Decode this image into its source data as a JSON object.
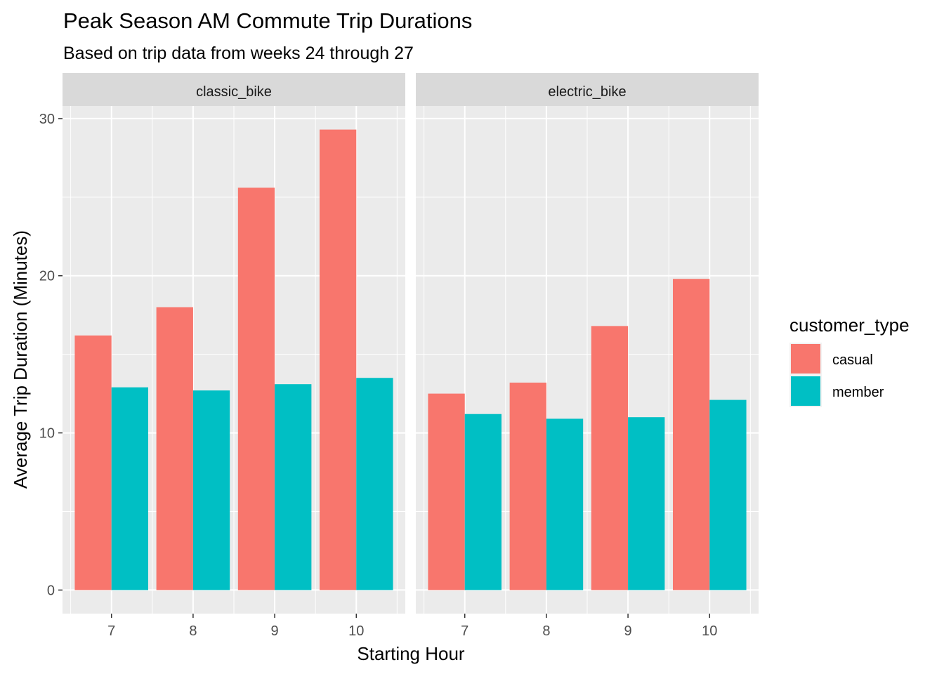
{
  "chart_data": {
    "type": "bar",
    "title": "Peak Season AM Commute Trip Durations",
    "subtitle": "Based on trip data from weeks 24 through 27",
    "xlabel": "Starting Hour",
    "ylabel": "Average Trip Duration (Minutes)",
    "ylim": [
      -1.5,
      30.8
    ],
    "yticks": [
      0,
      10,
      20,
      30
    ],
    "grid": true,
    "categories": [
      "7",
      "8",
      "9",
      "10"
    ],
    "legend": {
      "title": "customer_type",
      "placement": "right",
      "entries": [
        {
          "name": "casual",
          "color": "#F8766D"
        },
        {
          "name": "member",
          "color": "#00BFC4"
        }
      ]
    },
    "facets": [
      {
        "label": "classic_bike",
        "series": [
          {
            "name": "casual",
            "color": "#F8766D",
            "values": [
              16.2,
              18.0,
              25.6,
              29.3
            ]
          },
          {
            "name": "member",
            "color": "#00BFC4",
            "values": [
              12.9,
              12.7,
              13.1,
              13.5
            ]
          }
        ]
      },
      {
        "label": "electric_bike",
        "series": [
          {
            "name": "casual",
            "color": "#F8766D",
            "values": [
              12.5,
              13.2,
              16.8,
              19.8
            ]
          },
          {
            "name": "member",
            "color": "#00BFC4",
            "values": [
              11.2,
              10.9,
              11.0,
              12.1
            ]
          }
        ]
      }
    ]
  }
}
